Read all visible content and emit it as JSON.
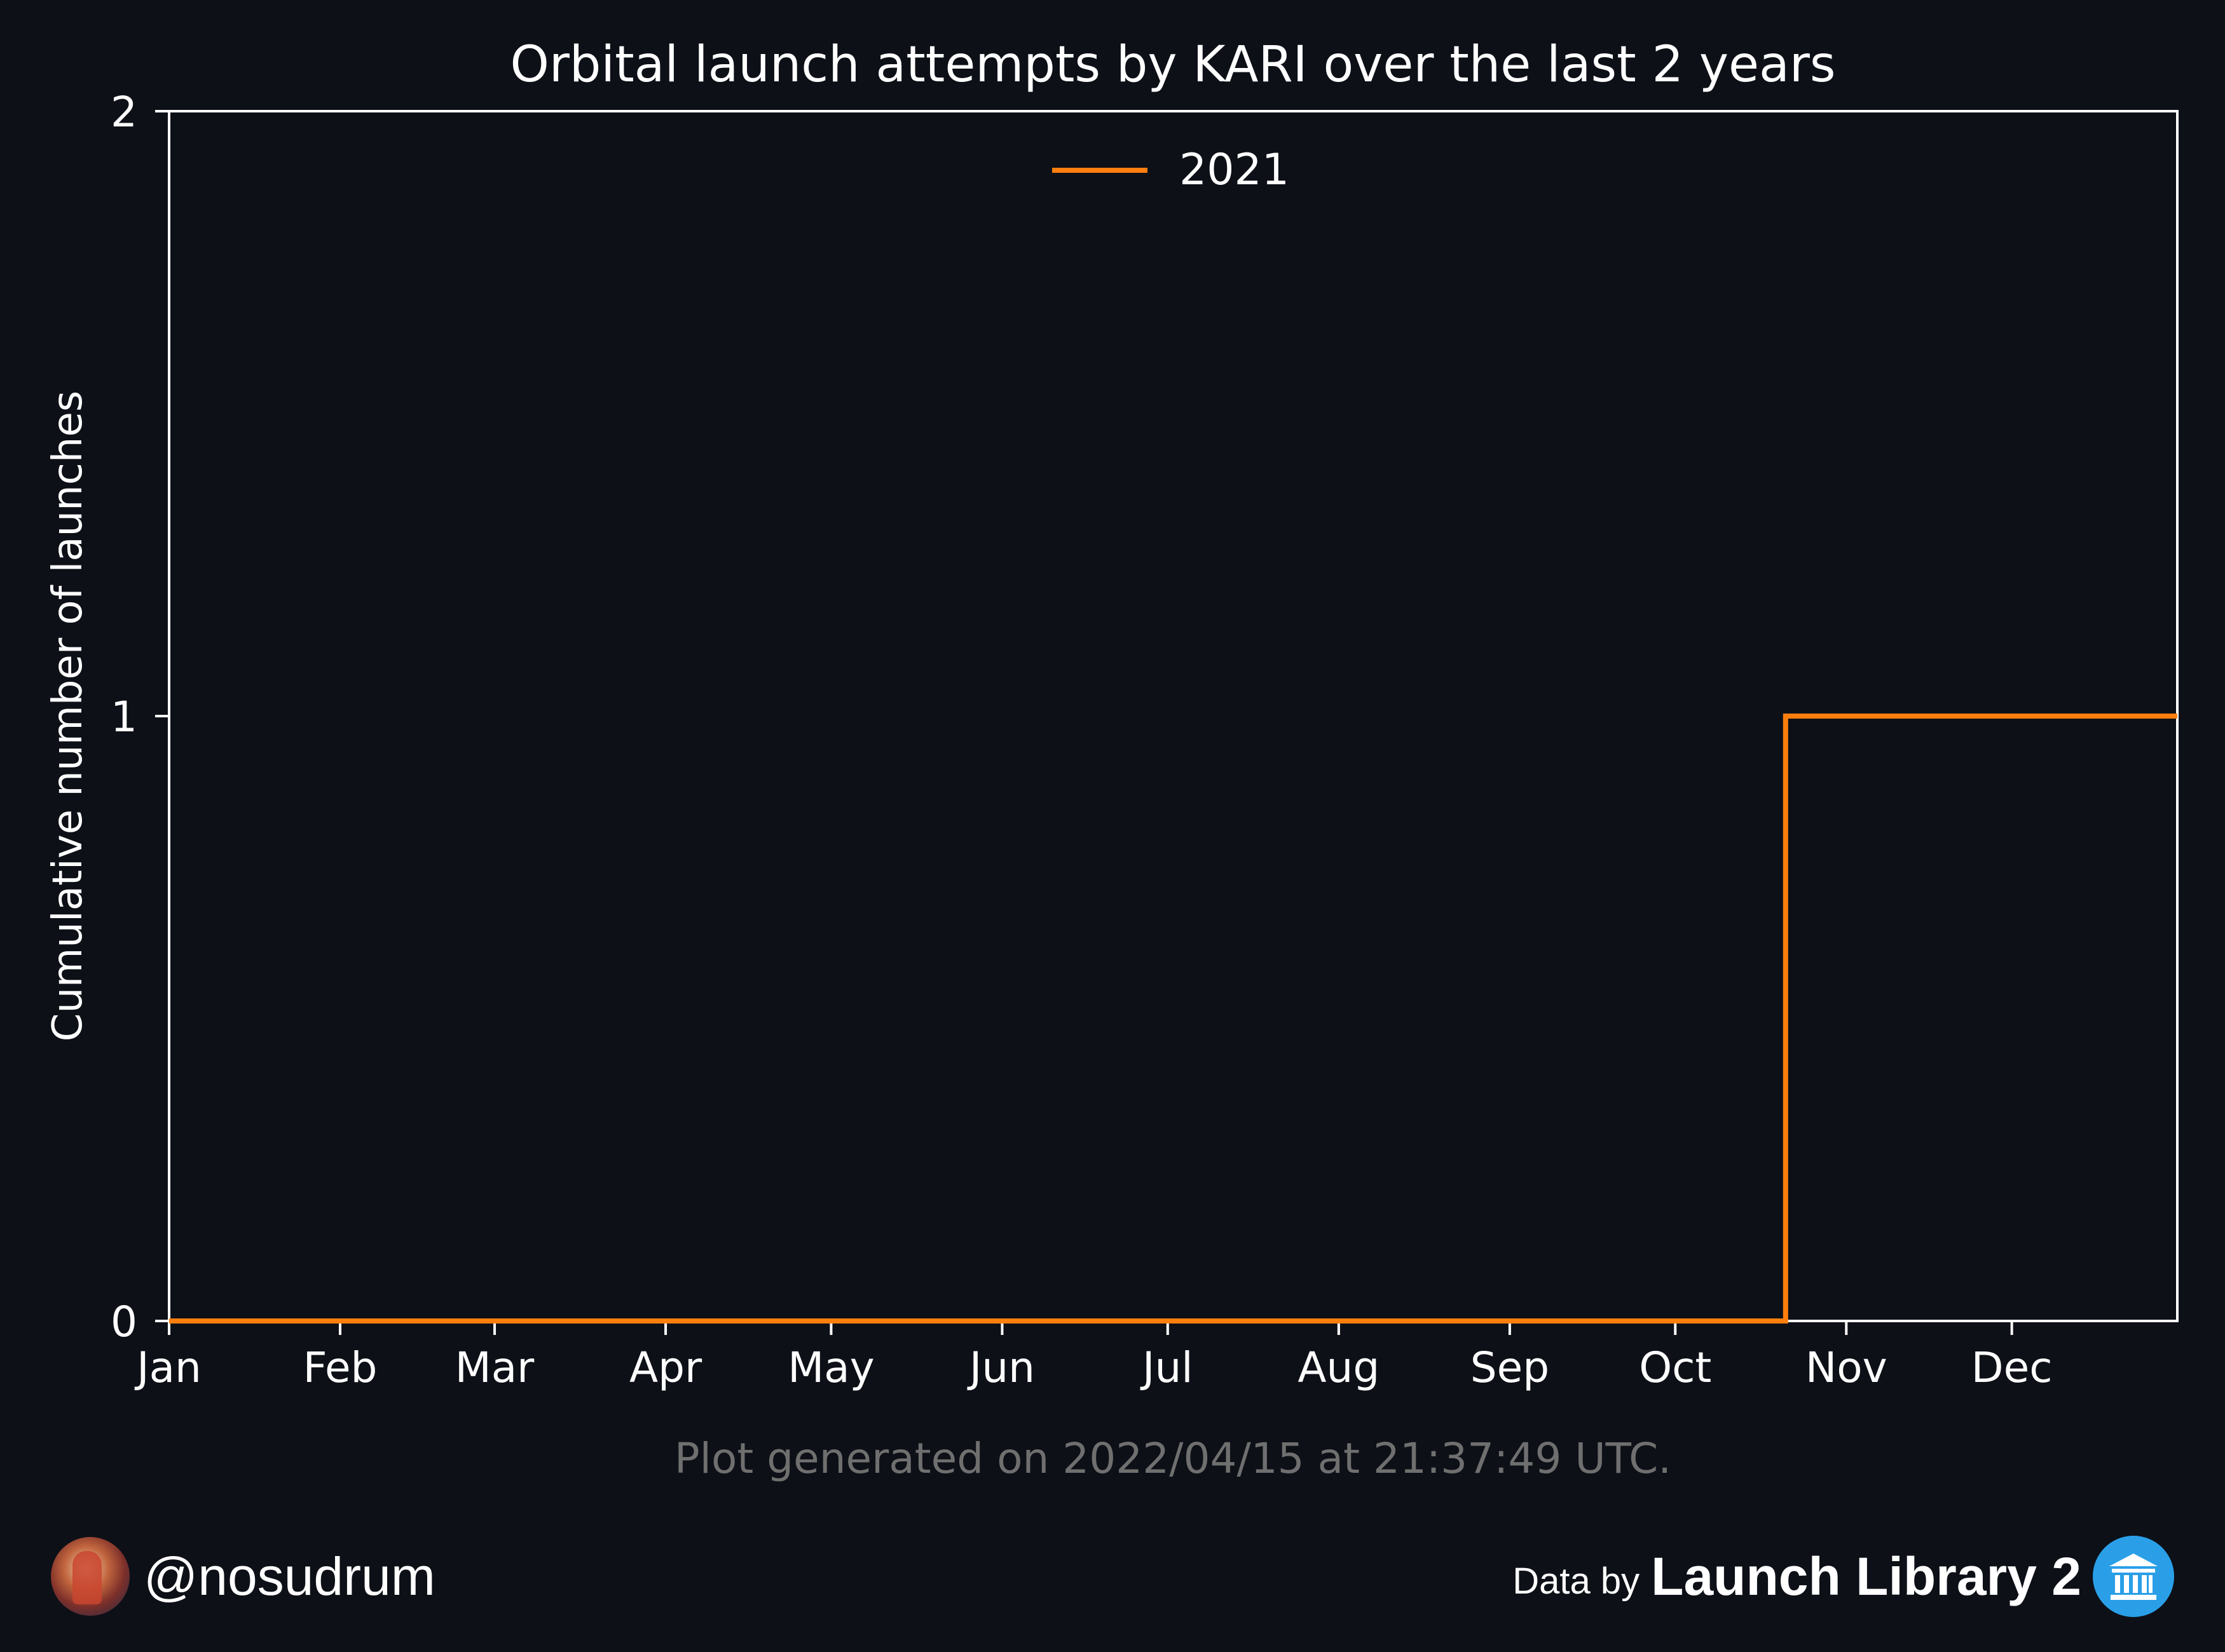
{
  "chart_data": {
    "type": "line",
    "title": "Orbital launch attempts by KARI over the last 2 years",
    "xlabel": "",
    "ylabel": "Cumulative number of launches",
    "x_tick_labels": [
      "Jan",
      "Feb",
      "Mar",
      "Apr",
      "May",
      "Jun",
      "Jul",
      "Aug",
      "Sep",
      "Oct",
      "Nov",
      "Dec"
    ],
    "y_ticks": [
      0,
      1,
      2
    ],
    "ylim": [
      0,
      2
    ],
    "xlim": [
      "2021-01-01",
      "2021-12-31"
    ],
    "line_style": "step",
    "legend_position": "upper-center",
    "series": [
      {
        "name": "2021",
        "color": "#ff7f0e",
        "x": [
          "2021-01-01",
          "2021-10-21",
          "2021-10-21",
          "2021-12-31"
        ],
        "y": [
          0,
          0,
          1,
          1
        ]
      }
    ],
    "footnote": "Plot generated on 2022/04/15 at 21:37:49 UTC."
  },
  "credits": {
    "handle": "@nosudrum",
    "data_by": "Data by",
    "source": "Launch Library 2"
  },
  "icons": {
    "avatar": "user-avatar-icon",
    "source_logo": "library-building-icon"
  },
  "colors": {
    "background": "#0d1017",
    "axes": "#ffffff",
    "series_2021": "#ff7f0e"
  }
}
